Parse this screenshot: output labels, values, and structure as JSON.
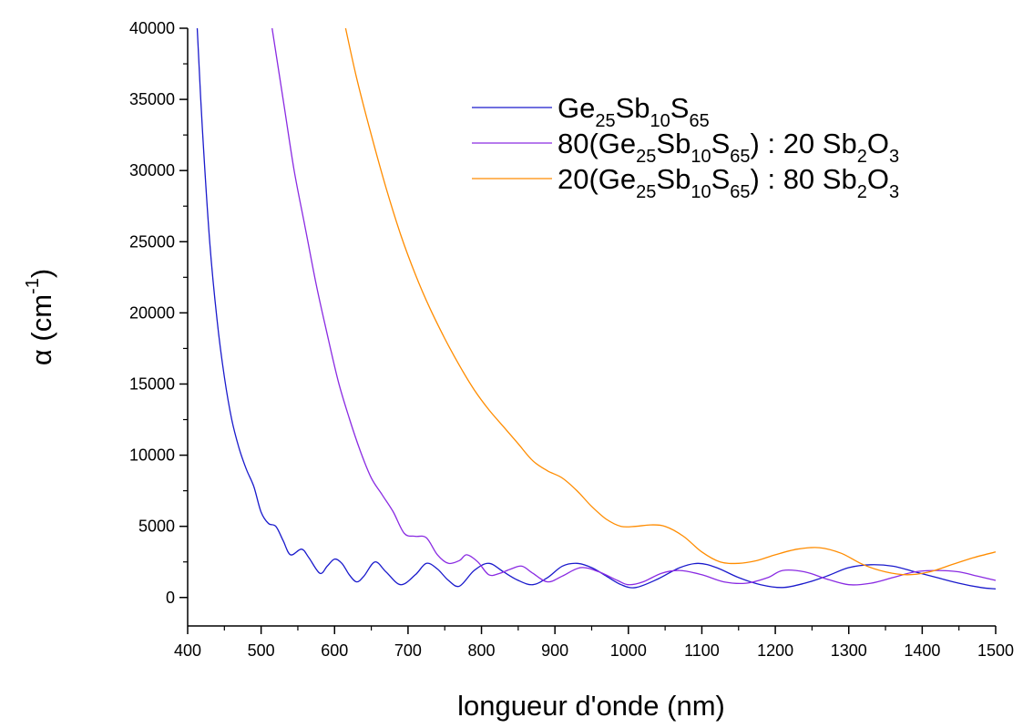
{
  "chart_data": {
    "type": "line",
    "xlabel": "longueur d'onde (nm)",
    "ylabel": {
      "main": "α (cm",
      "sup": "-1",
      "close": ")"
    },
    "xlim": [
      400,
      1500
    ],
    "ylim": [
      -2000,
      40000
    ],
    "xticks": [
      400,
      500,
      600,
      700,
      800,
      900,
      1000,
      1100,
      1200,
      1300,
      1400,
      1500
    ],
    "yticks": [
      0,
      5000,
      10000,
      15000,
      20000,
      25000,
      30000,
      35000,
      40000
    ],
    "grid": false,
    "legend_position": "top-right",
    "series": [
      {
        "name": "Ge25Sb10S65",
        "legend_parts": [
          [
            "Ge",
            ""
          ],
          [
            "25",
            "sub"
          ],
          [
            "Sb",
            ""
          ],
          [
            "10",
            "sub"
          ],
          [
            "S",
            ""
          ],
          [
            "65",
            "sub"
          ]
        ],
        "color": "#1a1acc",
        "x": [
          413,
          420,
          430,
          440,
          450,
          460,
          470,
          480,
          490,
          500,
          510,
          520,
          530,
          540,
          555,
          565,
          580,
          590,
          600,
          610,
          620,
          630,
          640,
          655,
          670,
          690,
          710,
          725,
          740,
          755,
          770,
          790,
          810,
          830,
          850,
          870,
          890,
          910,
          930,
          950,
          970,
          990,
          1010,
          1040,
          1070,
          1095,
          1120,
          1150,
          1180,
          1210,
          1240,
          1270,
          1300,
          1330,
          1360,
          1390,
          1420,
          1450,
          1480,
          1500
        ],
        "y": [
          40000,
          33000,
          25000,
          19500,
          15500,
          12500,
          10500,
          9000,
          7800,
          6000,
          5200,
          5000,
          4000,
          3000,
          3400,
          2800,
          1700,
          2200,
          2700,
          2400,
          1600,
          1100,
          1500,
          2500,
          1800,
          900,
          1600,
          2400,
          2000,
          1200,
          800,
          1900,
          2400,
          1800,
          1200,
          900,
          1400,
          2200,
          2400,
          2100,
          1500,
          900,
          700,
          1300,
          2100,
          2400,
          2100,
          1400,
          900,
          700,
          1000,
          1500,
          2100,
          2300,
          2200,
          1800,
          1400,
          1000,
          700,
          600
        ]
      },
      {
        "name": "80(Ge25Sb10S65) : 20 Sb2O3",
        "legend_parts": [
          [
            "80(Ge",
            ""
          ],
          [
            "25",
            "sub"
          ],
          [
            "Sb",
            ""
          ],
          [
            "10",
            "sub"
          ],
          [
            "S",
            ""
          ],
          [
            "65",
            "sub"
          ],
          [
            ") : 20 Sb",
            ""
          ],
          [
            "2",
            "sub"
          ],
          [
            "O",
            ""
          ],
          [
            "3",
            "sub"
          ]
        ],
        "color": "#8a2be2",
        "x": [
          515,
          530,
          545,
          560,
          575,
          590,
          605,
          620,
          635,
          650,
          665,
          680,
          695,
          710,
          725,
          740,
          755,
          770,
          780,
          795,
          810,
          825,
          840,
          855,
          870,
          890,
          910,
          935,
          960,
          985,
          1000,
          1020,
          1045,
          1070,
          1100,
          1130,
          1160,
          1190,
          1210,
          1240,
          1270,
          1300,
          1330,
          1360,
          1390,
          1420,
          1450,
          1475,
          1500
        ],
        "y": [
          40000,
          35000,
          30000,
          26000,
          22000,
          18500,
          15200,
          12600,
          10300,
          8400,
          7200,
          6000,
          4500,
          4300,
          4200,
          3000,
          2400,
          2600,
          3000,
          2500,
          1600,
          1700,
          2000,
          2200,
          1700,
          1100,
          1500,
          2100,
          1800,
          1200,
          900,
          1100,
          1700,
          1900,
          1600,
          1100,
          1000,
          1400,
          1900,
          1800,
          1300,
          900,
          1000,
          1400,
          1800,
          1900,
          1800,
          1500,
          1200
        ]
      },
      {
        "name": "20(Ge25Sb10S65) : 80 Sb2O3",
        "legend_parts": [
          [
            "20(Ge",
            ""
          ],
          [
            "25",
            "sub"
          ],
          [
            "Sb",
            ""
          ],
          [
            "10",
            "sub"
          ],
          [
            "S",
            ""
          ],
          [
            "65",
            "sub"
          ],
          [
            ") : 80 Sb",
            ""
          ],
          [
            "2",
            "sub"
          ],
          [
            "O",
            ""
          ],
          [
            "3",
            "sub"
          ]
        ],
        "color": "#ff8c00",
        "x": [
          615,
          630,
          650,
          670,
          690,
          710,
          730,
          750,
          770,
          790,
          810,
          830,
          850,
          870,
          890,
          910,
          930,
          950,
          970,
          990,
          1010,
          1030,
          1050,
          1075,
          1100,
          1125,
          1150,
          1175,
          1200,
          1230,
          1260,
          1290,
          1320,
          1350,
          1380,
          1410,
          1440,
          1470,
          1500
        ],
        "y": [
          40000,
          36500,
          32500,
          28800,
          25500,
          22700,
          20300,
          18200,
          16300,
          14600,
          13200,
          12000,
          10800,
          9600,
          8900,
          8400,
          7500,
          6400,
          5500,
          5000,
          5000,
          5100,
          5000,
          4300,
          3200,
          2500,
          2400,
          2600,
          3000,
          3400,
          3500,
          3100,
          2300,
          1800,
          1600,
          1800,
          2300,
          2800,
          3200
        ]
      }
    ]
  }
}
